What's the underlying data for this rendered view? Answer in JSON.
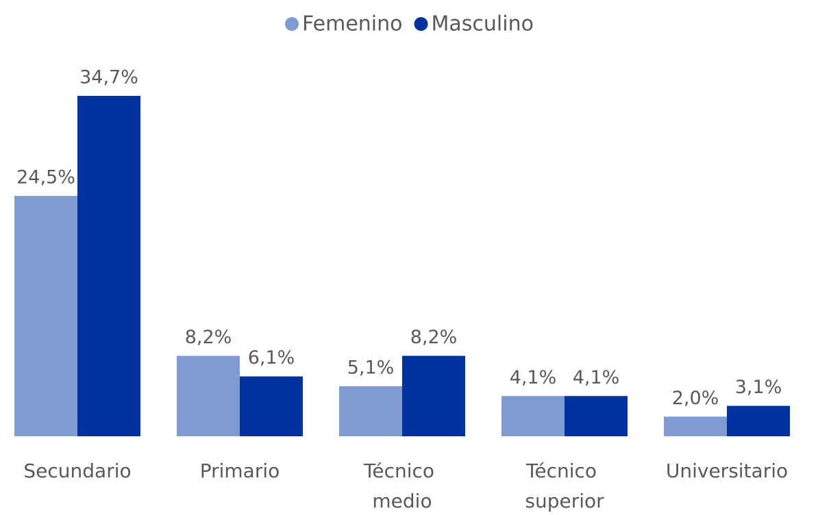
{
  "chart_data": {
    "type": "bar",
    "categories": [
      "Secundario",
      "Primario",
      "Técnico medio",
      "Técnico superior",
      "Universitario"
    ],
    "series": [
      {
        "name": "Femenino",
        "color": "#7f9bd1",
        "values": [
          24.5,
          8.2,
          5.1,
          4.1,
          2.0
        ],
        "value_labels": [
          "24,5%",
          "8,2%",
          "5,1%",
          "4,1%",
          "2,0%"
        ]
      },
      {
        "name": "Masculino",
        "color": "#0033a0",
        "values": [
          34.7,
          6.1,
          8.2,
          4.1,
          3.1
        ],
        "value_labels": [
          "34,7%",
          "6,1%",
          "8,2%",
          "4,1%",
          "3,1%"
        ]
      }
    ],
    "legend": "top"
  }
}
